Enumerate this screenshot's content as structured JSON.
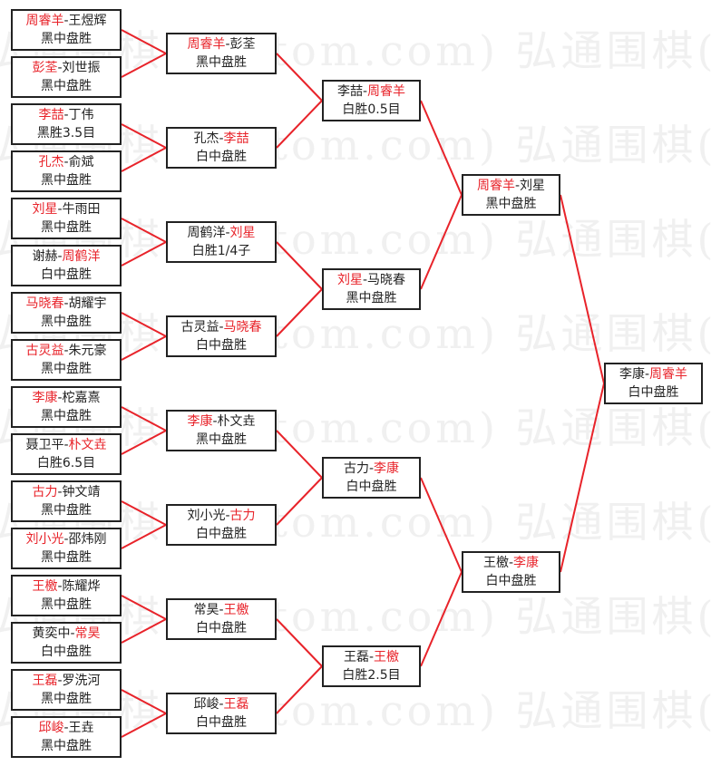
{
  "colors": {
    "winner": "#e8232a",
    "line": "#e8232a",
    "border": "#222222"
  },
  "watermark": "弘通围棋(hoetom.com) 弘通围棋(hoetom.com) 弘通",
  "rounds": [
    [
      {
        "a": "周睿羊",
        "b": "王煜辉",
        "w": 0,
        "result": "黑中盘胜"
      },
      {
        "a": "彭荃",
        "b": "刘世振",
        "w": 0,
        "result": "黑中盘胜"
      },
      {
        "a": "李喆",
        "b": "丁伟",
        "w": 0,
        "result": "黑胜3.5目"
      },
      {
        "a": "孔杰",
        "b": "俞斌",
        "w": 0,
        "result": "黑中盘胜"
      },
      {
        "a": "刘星",
        "b": "牛雨田",
        "w": 0,
        "result": "黑中盘胜"
      },
      {
        "a": "谢赫",
        "b": "周鹤洋",
        "w": 1,
        "result": "白中盘胜"
      },
      {
        "a": "马晓春",
        "b": "胡耀宇",
        "w": 0,
        "result": "黑中盘胜"
      },
      {
        "a": "古灵益",
        "b": "朱元豪",
        "w": 0,
        "result": "黑中盘胜"
      },
      {
        "a": "李康",
        "b": "柁嘉熹",
        "w": 0,
        "result": "黑中盘胜"
      },
      {
        "a": "聂卫平",
        "b": "朴文垚",
        "w": 1,
        "result": "白胜6.5目"
      },
      {
        "a": "古力",
        "b": "钟文靖",
        "w": 0,
        "result": "黑中盘胜"
      },
      {
        "a": "刘小光",
        "b": "邵炜刚",
        "w": 0,
        "result": "黑中盘胜"
      },
      {
        "a": "王檄",
        "b": "陈耀烨",
        "w": 0,
        "result": "黑中盘胜"
      },
      {
        "a": "黄奕中",
        "b": "常昊",
        "w": 1,
        "result": "白中盘胜"
      },
      {
        "a": "王磊",
        "b": "罗洗河",
        "w": 0,
        "result": "黑中盘胜"
      },
      {
        "a": "邱峻",
        "b": "王垚",
        "w": 0,
        "result": "黑中盘胜"
      }
    ],
    [
      {
        "a": "周睿羊",
        "b": "彭荃",
        "w": 0,
        "result": "黑中盘胜"
      },
      {
        "a": "孔杰",
        "b": "李喆",
        "w": 1,
        "result": "白中盘胜"
      },
      {
        "a": "周鹤洋",
        "b": "刘星",
        "w": 1,
        "result": "白胜1/4子"
      },
      {
        "a": "古灵益",
        "b": "马晓春",
        "w": 1,
        "result": "白中盘胜"
      },
      {
        "a": "李康",
        "b": "朴文垚",
        "w": 0,
        "result": "黑中盘胜"
      },
      {
        "a": "刘小光",
        "b": "古力",
        "w": 1,
        "result": "白中盘胜"
      },
      {
        "a": "常昊",
        "b": "王檄",
        "w": 1,
        "result": "白中盘胜"
      },
      {
        "a": "邱峻",
        "b": "王磊",
        "w": 1,
        "result": "白中盘胜"
      }
    ],
    [
      {
        "a": "李喆",
        "b": "周睿羊",
        "w": 1,
        "result": "白胜0.5目"
      },
      {
        "a": "刘星",
        "b": "马晓春",
        "w": 0,
        "result": "黑中盘胜"
      },
      {
        "a": "古力",
        "b": "李康",
        "w": 1,
        "result": "白中盘胜"
      },
      {
        "a": "王磊",
        "b": "王檄",
        "w": 1,
        "result": "白胜2.5目"
      }
    ],
    [
      {
        "a": "周睿羊",
        "b": "刘星",
        "w": 0,
        "result": "黑中盘胜"
      },
      {
        "a": "王檄",
        "b": "李康",
        "w": 1,
        "result": "白中盘胜"
      }
    ],
    [
      {
        "a": "李康",
        "b": "周睿羊",
        "w": 1,
        "result": "白中盘胜"
      }
    ]
  ]
}
